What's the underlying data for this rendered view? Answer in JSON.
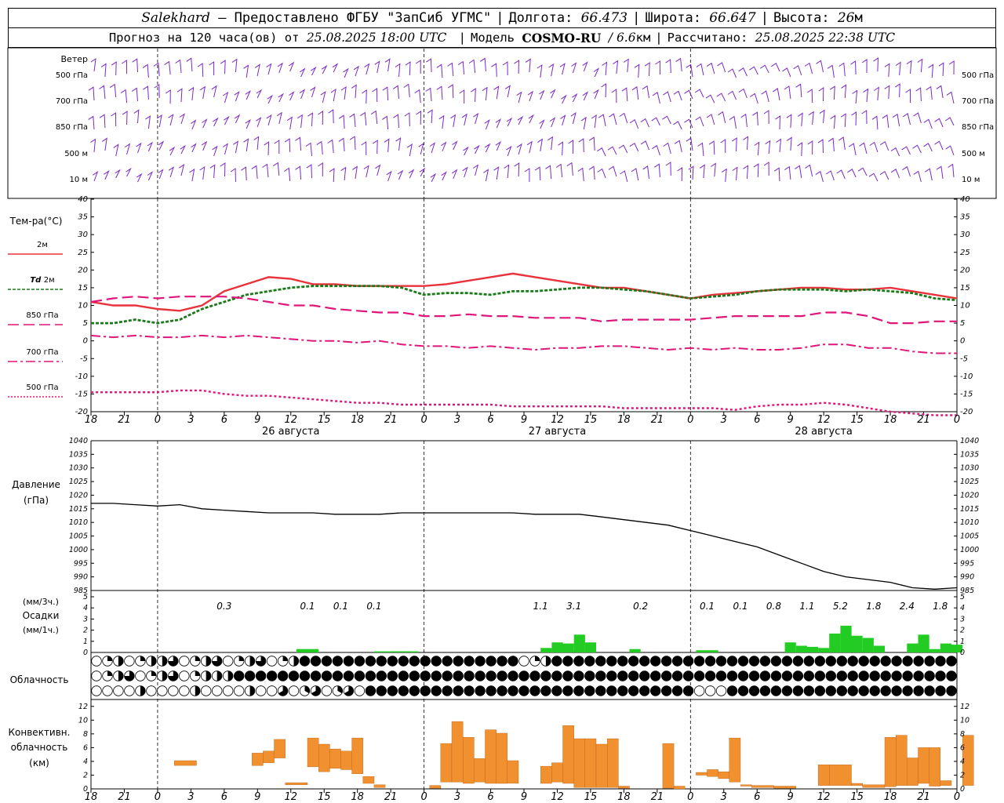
{
  "header": {
    "station": "Salekhard",
    "provider": "– Предоставлено ФГБУ \"ЗапСиб УГМС\"",
    "lon_label": "Долгота:",
    "lon_value": "66.473",
    "lat_label": "Широта:",
    "lat_value": "66.647",
    "alt_label": "Высота:",
    "alt_value": "26",
    "alt_unit": "м",
    "forecast_prefix": "Прогноз на 120 часа(ов) от",
    "forecast_time": "25.08.2025 18:00 UTC",
    "model_label": "Модель",
    "model_name": "COSMO-RU",
    "model_res": "/ 6.6",
    "model_res_unit": "км",
    "calc_label": "Рассчитано:",
    "calc_time": "25.08.2025 22:38 UTC"
  },
  "time_axis": {
    "hour_labels": [
      "18",
      "21",
      "0",
      "3",
      "6",
      "9",
      "12",
      "15",
      "18",
      "21",
      "0",
      "3",
      "6",
      "9",
      "12",
      "15",
      "18",
      "21",
      "0",
      "3",
      "6",
      "9",
      "12",
      "15",
      "18",
      "21",
      "0"
    ],
    "day_labels": [
      {
        "label": "26 августа",
        "hour": 18
      },
      {
        "label": "27 августа",
        "hour": 42
      },
      {
        "label": "28 августа",
        "hour": 66
      }
    ],
    "midnight_hours": [
      6,
      30,
      54
    ]
  },
  "wind": {
    "title": "Ветер",
    "levels": [
      "500 гПа",
      "700 гПа",
      "850 гПа",
      "500 м",
      "10 м"
    ]
  },
  "temperature": {
    "title": "Тем-ра(°C)",
    "y_ticks": [
      "40",
      "35",
      "30",
      "25",
      "20",
      "15",
      "10",
      "5",
      "0",
      "-5",
      "-10",
      "-15",
      "-20"
    ],
    "ylim": [
      -20,
      40
    ],
    "legend": [
      {
        "label": "2м",
        "color": "#e8323c",
        "style": "solid"
      },
      {
        "label_italic": "Td",
        "label": "2м",
        "color": "#1a7a1a",
        "style": "dotted"
      },
      {
        "label": "850 гПа",
        "color": "#e0157a",
        "style": "dash"
      },
      {
        "label": "700 гПа",
        "color": "#e0157a",
        "style": "dashdot"
      },
      {
        "label": "500 гПа",
        "color": "#e0157a",
        "style": "dot"
      }
    ]
  },
  "pressure": {
    "title": "Давление",
    "unit": "(гПа)",
    "y_ticks": [
      "1040",
      "1035",
      "1030",
      "1025",
      "1020",
      "1015",
      "1010",
      "1005",
      "1000",
      "995",
      "990",
      "985"
    ],
    "ylim": [
      985,
      1040
    ]
  },
  "precip": {
    "unit3": "(мм/3ч.)",
    "title": "Осадки",
    "unit1": "(мм/1ч.)",
    "y_ticks": [
      "5",
      "4",
      "3",
      "2",
      "1",
      "0"
    ],
    "ylim": [
      0,
      5
    ],
    "color": "#22cc22",
    "totals": [
      {
        "hour": 12,
        "value": "0.3"
      },
      {
        "hour": 19.5,
        "value": "0.1"
      },
      {
        "hour": 22.5,
        "value": "0.1"
      },
      {
        "hour": 25.5,
        "value": "0.1"
      },
      {
        "hour": 40.5,
        "value": "1.1"
      },
      {
        "hour": 43.5,
        "value": "3.1"
      },
      {
        "hour": 49.5,
        "value": "0.2"
      },
      {
        "hour": 55.5,
        "value": "0.1"
      },
      {
        "hour": 58.5,
        "value": "0.1"
      },
      {
        "hour": 61.5,
        "value": "0.8"
      },
      {
        "hour": 64.5,
        "value": "1.1"
      },
      {
        "hour": 67.5,
        "value": "5.2"
      },
      {
        "hour": 70.5,
        "value": "1.8"
      },
      {
        "hour": 73.5,
        "value": "2.4"
      },
      {
        "hour": 76.5,
        "value": "1.8"
      }
    ]
  },
  "cloud": {
    "title": "Облачность"
  },
  "convective": {
    "title_line1": "Конвективн.",
    "title_line2": "облачность",
    "unit": "(км)",
    "y_ticks": [
      "12",
      "10",
      "8",
      "6",
      "4",
      "2",
      "0"
    ],
    "ylim": [
      0,
      13
    ],
    "color": "#f0902e"
  },
  "chart_data": {
    "type": "line",
    "x_unit": "hours since 25.08.2025 18:00 UTC",
    "temperature_series": [
      {
        "name": "2м",
        "x": [
          0,
          2,
          4,
          6,
          8,
          10,
          12,
          14,
          16,
          18,
          20,
          22,
          24,
          26,
          28,
          30,
          32,
          34,
          36,
          38,
          40,
          42,
          44,
          46,
          48,
          50,
          52,
          54,
          56,
          58,
          60,
          62,
          64,
          66,
          68,
          70,
          72,
          74,
          76,
          78
        ],
        "values": [
          11,
          10,
          10,
          9,
          8.5,
          10,
          14,
          16,
          18,
          17.5,
          16,
          16,
          15.5,
          15.5,
          15.5,
          15.5,
          16,
          17,
          18,
          19,
          18,
          17,
          16,
          15,
          15,
          14,
          13,
          12,
          13,
          13.5,
          14,
          14.5,
          15,
          15,
          14.5,
          14.5,
          15,
          14,
          13,
          12
        ]
      },
      {
        "name": "Td 2м",
        "x": [
          0,
          2,
          4,
          6,
          8,
          10,
          12,
          14,
          16,
          18,
          20,
          22,
          24,
          26,
          28,
          30,
          32,
          34,
          36,
          38,
          40,
          42,
          44,
          46,
          48,
          50,
          52,
          54,
          56,
          58,
          60,
          62,
          64,
          66,
          68,
          70,
          72,
          74,
          76,
          78
        ],
        "values": [
          5,
          5,
          6,
          5,
          6,
          9,
          11,
          13,
          14,
          15,
          15.5,
          15.5,
          15.5,
          15.5,
          15,
          13,
          13.5,
          13.5,
          13,
          14,
          14,
          14.5,
          15,
          15,
          14.5,
          14,
          13,
          12,
          12.5,
          13,
          14,
          14.5,
          14.5,
          14.5,
          14,
          14.5,
          14,
          13.5,
          12,
          11.5
        ]
      },
      {
        "name": "850 гПа",
        "x": [
          0,
          2,
          4,
          6,
          8,
          10,
          12,
          14,
          16,
          18,
          20,
          22,
          24,
          26,
          28,
          30,
          32,
          34,
          36,
          38,
          40,
          42,
          44,
          46,
          48,
          50,
          52,
          54,
          56,
          58,
          60,
          62,
          64,
          66,
          68,
          70,
          72,
          74,
          76,
          78
        ],
        "values": [
          11,
          12,
          12.5,
          12,
          12.5,
          12.5,
          12.5,
          12,
          11,
          10,
          10,
          9,
          8.5,
          8,
          8,
          7,
          7,
          7.5,
          7,
          7,
          6.5,
          6.5,
          6.5,
          5.5,
          6,
          6,
          6,
          6,
          6.5,
          7,
          7,
          7,
          7,
          8,
          8,
          7,
          5,
          5,
          5.5,
          5.5
        ]
      },
      {
        "name": "700 гПа",
        "x": [
          0,
          2,
          4,
          6,
          8,
          10,
          12,
          14,
          16,
          18,
          20,
          22,
          24,
          26,
          28,
          30,
          32,
          34,
          36,
          38,
          40,
          42,
          44,
          46,
          48,
          50,
          52,
          54,
          56,
          58,
          60,
          62,
          64,
          66,
          68,
          70,
          72,
          74,
          76,
          78
        ],
        "values": [
          1.5,
          1,
          1.5,
          1,
          1,
          1.5,
          1,
          1.5,
          1,
          0.5,
          0,
          0,
          -0.5,
          0,
          -1,
          -1.5,
          -1.5,
          -2,
          -1.5,
          -2,
          -2.5,
          -2,
          -2,
          -1.5,
          -1.5,
          -2,
          -2.5,
          -2,
          -2.5,
          -2,
          -2.5,
          -2.5,
          -2,
          -1,
          -1,
          -2,
          -2,
          -3,
          -3.5,
          -3.5
        ]
      },
      {
        "name": "500 гПа",
        "x": [
          0,
          2,
          4,
          6,
          8,
          10,
          12,
          14,
          16,
          18,
          20,
          22,
          24,
          26,
          28,
          30,
          32,
          34,
          36,
          38,
          40,
          42,
          44,
          46,
          48,
          50,
          52,
          54,
          56,
          58,
          60,
          62,
          64,
          66,
          68,
          70,
          72,
          74,
          76,
          78
        ],
        "values": [
          -14.5,
          -14.5,
          -14.5,
          -14.5,
          -14,
          -14,
          -15,
          -15.5,
          -15.5,
          -16,
          -16.5,
          -17,
          -17.5,
          -17.5,
          -18,
          -18,
          -18,
          -18,
          -18,
          -18.5,
          -18.5,
          -18.5,
          -18.5,
          -18.5,
          -19,
          -19,
          -19,
          -19,
          -19,
          -19.5,
          -18.5,
          -18,
          -18,
          -17.5,
          -18,
          -19,
          -20,
          -20.5,
          -21,
          -21
        ]
      }
    ],
    "pressure_series": {
      "name": "Давление",
      "x": [
        0,
        2,
        4,
        6,
        8,
        10,
        12,
        14,
        16,
        18,
        20,
        22,
        24,
        26,
        28,
        30,
        32,
        34,
        36,
        38,
        40,
        42,
        44,
        46,
        48,
        50,
        52,
        54,
        56,
        58,
        60,
        62,
        64,
        66,
        68,
        70,
        72,
        74,
        76,
        78
      ],
      "values": [
        1017,
        1017,
        1016.5,
        1016,
        1016.5,
        1015,
        1014.5,
        1014,
        1013.5,
        1013.5,
        1013.5,
        1013,
        1013,
        1013,
        1013.5,
        1013.5,
        1013.5,
        1013.5,
        1013.5,
        1013.5,
        1013,
        1013,
        1013,
        1012,
        1011,
        1010,
        1009,
        1007,
        1005,
        1003,
        1001,
        998,
        995,
        992,
        990,
        989,
        988,
        986,
        985.5,
        986
      ]
    },
    "precip_bars": {
      "unit": "мм/1ч.",
      "hours": [
        19,
        20,
        26,
        27,
        27.5,
        28,
        28.5,
        29,
        41,
        42,
        43,
        44,
        45,
        49,
        55,
        56,
        63,
        64,
        65,
        66,
        67,
        68,
        69,
        70,
        71,
        74,
        75,
        76,
        77,
        78
      ],
      "values": [
        0.3,
        0.3,
        0.1,
        0.1,
        0.1,
        0.1,
        0.1,
        0.1,
        0.4,
        0.9,
        0.8,
        1.6,
        0.9,
        0.3,
        0.2,
        0.2,
        0.9,
        0.6,
        0.5,
        0.4,
        1.7,
        2.4,
        1.5,
        1.3,
        0.6,
        0.8,
        1.6,
        0.3,
        0.8,
        0.7
      ]
    },
    "convective_bars": {
      "unit": "км",
      "bars": [
        [
          7.5,
          9.5,
          3.4,
          4.1
        ],
        [
          14.5,
          15.5,
          3.4,
          5.2
        ],
        [
          15.5,
          16.5,
          3.8,
          5.5
        ],
        [
          16.5,
          17.5,
          4.5,
          7.2
        ],
        [
          17.5,
          19.5,
          0.6,
          0.9
        ],
        [
          19.5,
          20.5,
          3.2,
          7.4
        ],
        [
          20.5,
          21.5,
          2.5,
          6.5
        ],
        [
          21.5,
          22.5,
          3.0,
          5.8
        ],
        [
          22.5,
          23.5,
          2.8,
          5.5
        ],
        [
          23.5,
          24.5,
          2.2,
          7.4
        ],
        [
          24.5,
          25.5,
          0.8,
          1.8
        ],
        [
          25.5,
          26.5,
          0.2,
          0.6
        ],
        [
          30.5,
          31.5,
          0.1,
          0.5
        ],
        [
          31.5,
          32.5,
          1.0,
          6.6
        ],
        [
          32.5,
          33.5,
          1.0,
          9.8
        ],
        [
          33.5,
          34.5,
          0.8,
          7.5
        ],
        [
          34.5,
          35.5,
          1.0,
          4.4
        ],
        [
          35.5,
          36.5,
          0.8,
          8.6
        ],
        [
          36.5,
          37.5,
          0.8,
          8.1
        ],
        [
          37.5,
          38.5,
          0.8,
          4.1
        ],
        [
          40.5,
          41.5,
          0.8,
          3.3
        ],
        [
          41.5,
          42.5,
          1.0,
          3.8
        ],
        [
          42.5,
          43.5,
          0.8,
          9.2
        ],
        [
          43.5,
          44.5,
          0.2,
          7.3
        ],
        [
          44.5,
          45.5,
          0.2,
          7.3
        ],
        [
          45.5,
          46.5,
          0.2,
          6.5
        ],
        [
          46.5,
          47.5,
          0.2,
          7.3
        ],
        [
          47.5,
          48.5,
          0.1,
          0.4
        ],
        [
          51.5,
          52.5,
          0.1,
          6.6
        ],
        [
          52.5,
          53.5,
          0.0,
          0.4
        ],
        [
          54.5,
          55.5,
          2.0,
          2.4
        ],
        [
          55.5,
          56.5,
          1.8,
          2.8
        ],
        [
          56.5,
          57.5,
          1.5,
          2.5
        ],
        [
          57.5,
          58.5,
          1.0,
          7.4
        ],
        [
          58.5,
          59.5,
          0.4,
          0.6
        ],
        [
          59.5,
          61.5,
          0.2,
          0.5
        ],
        [
          61.5,
          63.5,
          0.1,
          0.4
        ],
        [
          65.5,
          66.5,
          0.5,
          3.5
        ],
        [
          66.5,
          68.5,
          0.5,
          3.5
        ],
        [
          68.5,
          69.5,
          0.5,
          0.8
        ],
        [
          69.5,
          71.5,
          0.2,
          0.6
        ],
        [
          71.5,
          72.5,
          0.3,
          7.5
        ],
        [
          72.5,
          73.5,
          0.5,
          7.8
        ],
        [
          73.5,
          74.5,
          0.5,
          4.5
        ],
        [
          74.5,
          75.5,
          0.8,
          6.0
        ],
        [
          75.5,
          76.5,
          0.4,
          6.0
        ],
        [
          76.5,
          77.5,
          0.5,
          1.2
        ],
        [
          78.5,
          79.5,
          0.5,
          7.8
        ]
      ]
    },
    "cloud_rows": 3,
    "wind_levels": 5
  }
}
